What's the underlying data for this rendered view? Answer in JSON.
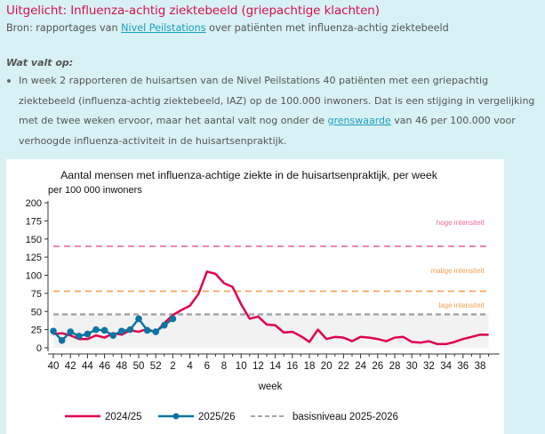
{
  "header": {
    "title": "Uitgelicht: Influenza-achtig ziektebeeld (griepachtige klachten)",
    "source_prefix": "Bron: rapportages van ",
    "source_link": "Nivel Peilstations",
    "source_suffix": " over patiënten met influenza-achtig ziektebeeld"
  },
  "notes": {
    "subheading": "Wat valt op:",
    "bullet_1_part1": "In week 2 rapporteren de huisartsen van de Nivel Peilstations 40 patiënten met een griepachtig ziektebeeld (influenza-achtig ziektebeeld, IAZ) op de 100.000 inwoners. Dat is een stijging in vergelijking met de twee weken ervoor, maar het aantal valt nog onder de ",
    "bullet_1_link": "grenswaarde",
    "bullet_1_part2": " van 46 per 100.000 voor verhoogde influenza-activiteit in de huisartsenpraktijk."
  },
  "colors": {
    "title": "#d5104f",
    "link": "#1a9fc0",
    "series_2024": "#e0004d",
    "series_2025": "#0b74a3",
    "baseline": "#a6a6a6",
    "high": "#ee6a93",
    "medium": "#f7a050",
    "low": "#f7a050"
  },
  "chart_data": {
    "type": "line",
    "title": "Aantal mensen met influenza-achtige ziekte in de huisartsenpraktijk, per week",
    "ylabel": "per 100 000 inwoners",
    "xlabel": "week",
    "ylim": [
      0,
      200
    ],
    "yticks": [
      0,
      25,
      50,
      75,
      100,
      125,
      150,
      175,
      200
    ],
    "x": [
      40,
      41,
      42,
      43,
      44,
      45,
      46,
      47,
      48,
      49,
      50,
      51,
      52,
      1,
      2,
      3,
      4,
      5,
      6,
      7,
      8,
      9,
      10,
      11,
      12,
      13,
      14,
      15,
      16,
      17,
      18,
      19,
      20,
      21,
      22,
      23,
      24,
      25,
      26,
      27,
      28,
      29,
      30,
      31,
      32,
      33,
      34,
      35,
      36,
      37,
      38,
      39
    ],
    "xtick_labels": [
      "40",
      "42",
      "44",
      "46",
      "48",
      "50",
      "52",
      "2",
      "4",
      "6",
      "8",
      "10",
      "12",
      "14",
      "16",
      "18",
      "20",
      "22",
      "24",
      "26",
      "28",
      "30",
      "32",
      "34",
      "36",
      "38"
    ],
    "series": [
      {
        "name": "2024/25",
        "markers": false,
        "values": [
          19,
          20,
          17,
          12,
          12,
          17,
          14,
          20,
          18,
          24,
          22,
          26,
          21,
          34,
          45,
          52,
          58,
          74,
          105,
          102,
          89,
          84,
          60,
          40,
          43,
          32,
          31,
          21,
          22,
          16,
          8,
          25,
          12,
          15,
          14,
          9,
          15,
          14,
          12,
          9,
          14,
          15,
          8,
          7,
          9,
          5,
          5,
          8,
          12,
          15,
          18,
          18
        ]
      },
      {
        "name": "2025/26",
        "markers": true,
        "values": [
          23,
          10,
          22,
          16,
          19,
          25,
          24,
          17,
          23,
          25,
          40,
          24,
          22,
          31,
          40
        ]
      }
    ],
    "reference_lines": [
      {
        "name": "basisniveau 2025-2026",
        "value": 46,
        "label": ""
      },
      {
        "name": "lage intensiteit",
        "value": 46,
        "label": "lage intensiteit"
      },
      {
        "name": "matige intensiteit",
        "value": 78,
        "label": "matige intensiteit"
      },
      {
        "name": "hoge intensiteit",
        "value": 140,
        "label": "hoge intensiteit"
      }
    ],
    "intensity_labels": {
      "high": "hoge intensiteit",
      "medium": "matige intensiteit",
      "low": "lage intensiteit"
    },
    "legend": {
      "position": "bottom",
      "items": [
        "2024/25",
        "2025/26",
        "basisniveau 2025-2026"
      ]
    },
    "grid": false
  }
}
